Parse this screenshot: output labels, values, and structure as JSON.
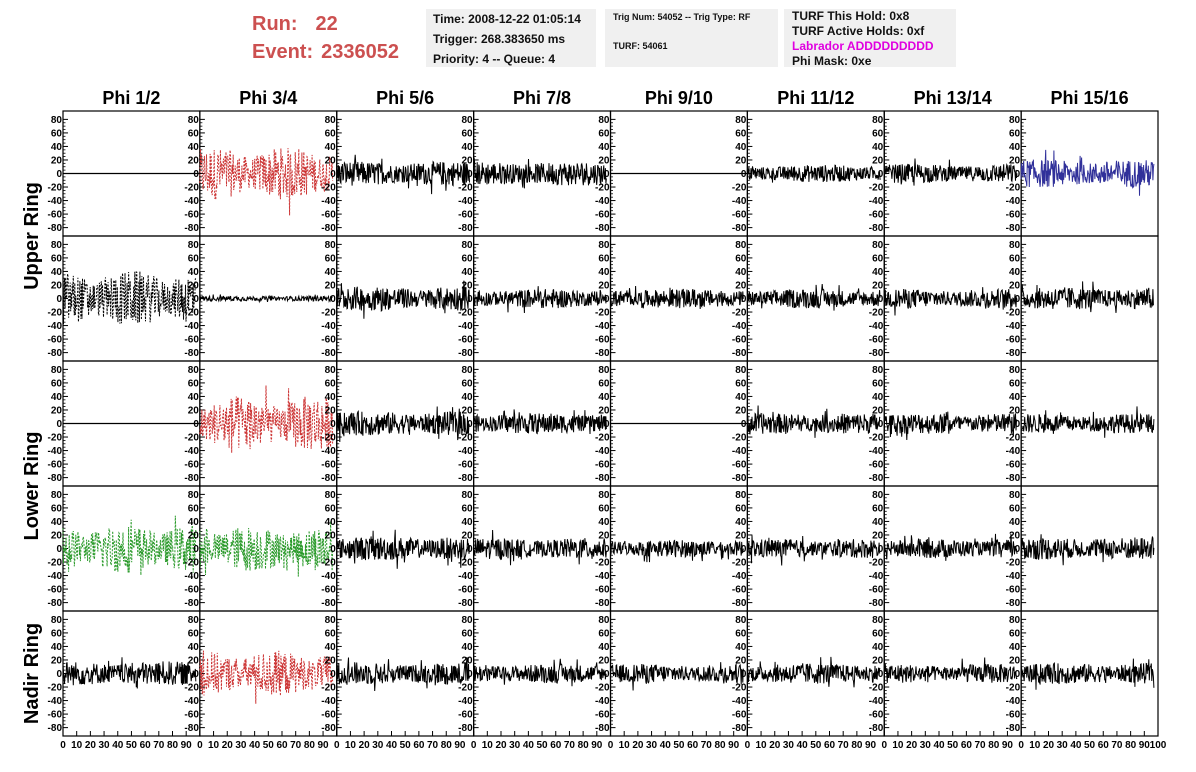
{
  "header": {
    "run_label": "Run:",
    "run_value": "22",
    "event_label": "Event:",
    "event_value": "2336052"
  },
  "info1": {
    "time": "Time: 2008-12-22 01:05:14",
    "trigger": "Trigger: 268.383650 ms",
    "priority": "Priority: 4 -- Queue: 4"
  },
  "info2": {
    "trig": "Trig Num: 54052 -- Trig Type: RF",
    "turf": "TURF: 54061"
  },
  "info3": {
    "hold": "TURF This Hold: 0x8",
    "active": "TURF Active Holds: 0xf",
    "labrador": "Labrador ADDDDDDDDD",
    "phimask": "Phi Mask: 0xe"
  },
  "colors": {
    "black": "#000000",
    "red": "#cc3333",
    "green": "#2a9a2a",
    "blue": "#30309a",
    "run_text": "#cc5050",
    "labrador": "#e000e0"
  },
  "chart_data": {
    "type": "line",
    "columns": [
      "Phi 1/2",
      "Phi 3/4",
      "Phi 5/6",
      "Phi 7/8",
      "Phi 9/10",
      "Phi 11/12",
      "Phi 13/14",
      "Phi 15/16"
    ],
    "row_groups": [
      "Upper Ring",
      "Lower Ring",
      "Nadir Ring"
    ],
    "xlim": [
      0,
      100
    ],
    "ylim": [
      -85,
      85
    ],
    "y_ticks": [
      -80,
      -60,
      -40,
      -20,
      0,
      20,
      40,
      60,
      80
    ],
    "y_tick_labels": [
      "-80",
      "-60",
      "-40",
      "-20",
      "0",
      "20",
      "40",
      "60",
      "80"
    ],
    "x_ticks": [
      0,
      10,
      20,
      30,
      40,
      50,
      60,
      70,
      80,
      90,
      100
    ],
    "x_tick_labels": [
      "0",
      "10",
      "20",
      "30",
      "40",
      "50",
      "60",
      "70",
      "80",
      "90",
      "100"
    ],
    "x_tick_labels_last": [
      "0",
      "10",
      "20",
      "30",
      "40",
      "50",
      "60",
      "70",
      "80",
      "90",
      "100"
    ],
    "panels": [
      [
        {
          "style": "flat",
          "color": "black"
        },
        {
          "style": "dashed",
          "color": "red",
          "amp": 30
        },
        {
          "style": "solid",
          "color": "black",
          "amp": 14
        },
        {
          "style": "solid",
          "color": "black",
          "amp": 14
        },
        {
          "style": "flat",
          "color": "black"
        },
        {
          "style": "solid",
          "color": "black",
          "amp": 10
        },
        {
          "style": "solid",
          "color": "black",
          "amp": 11
        },
        {
          "style": "solid",
          "color": "blue",
          "amp": 16
        }
      ],
      [
        {
          "style": "dashed",
          "color": "black",
          "amp": 32
        },
        {
          "style": "solid",
          "color": "black",
          "amp": 3
        },
        {
          "style": "solid",
          "color": "black",
          "amp": 14
        },
        {
          "style": "solid",
          "color": "black",
          "amp": 11
        },
        {
          "style": "solid",
          "color": "black",
          "amp": 11
        },
        {
          "style": "solid",
          "color": "black",
          "amp": 11
        },
        {
          "style": "solid",
          "color": "black",
          "amp": 11
        },
        {
          "style": "solid",
          "color": "black",
          "amp": 13
        }
      ],
      [
        {
          "style": "flat",
          "color": "black"
        },
        {
          "style": "dashed",
          "color": "red",
          "amp": 32
        },
        {
          "style": "solid",
          "color": "black",
          "amp": 14
        },
        {
          "style": "solid",
          "color": "black",
          "amp": 12
        },
        {
          "style": "flat",
          "color": "black"
        },
        {
          "style": "solid",
          "color": "black",
          "amp": 12
        },
        {
          "style": "solid",
          "color": "black",
          "amp": 12
        },
        {
          "style": "solid",
          "color": "black",
          "amp": 11
        }
      ],
      [
        {
          "style": "dashed",
          "color": "green",
          "amp": 28
        },
        {
          "style": "dashed",
          "color": "green",
          "amp": 26
        },
        {
          "style": "solid",
          "color": "black",
          "amp": 14
        },
        {
          "style": "solid",
          "color": "black",
          "amp": 12
        },
        {
          "style": "solid",
          "color": "black",
          "amp": 10
        },
        {
          "style": "solid",
          "color": "black",
          "amp": 11
        },
        {
          "style": "solid",
          "color": "black",
          "amp": 11
        },
        {
          "style": "solid",
          "color": "black",
          "amp": 13
        }
      ],
      [
        {
          "style": "solid",
          "color": "black",
          "amp": 14
        },
        {
          "style": "dashed",
          "color": "red",
          "amp": 26
        },
        {
          "style": "solid",
          "color": "black",
          "amp": 13
        },
        {
          "style": "solid",
          "color": "black",
          "amp": 11
        },
        {
          "style": "solid",
          "color": "black",
          "amp": 11
        },
        {
          "style": "solid",
          "color": "black",
          "amp": 12
        },
        {
          "style": "solid",
          "color": "black",
          "amp": 11
        },
        {
          "style": "solid",
          "color": "black",
          "amp": 12
        }
      ]
    ]
  }
}
